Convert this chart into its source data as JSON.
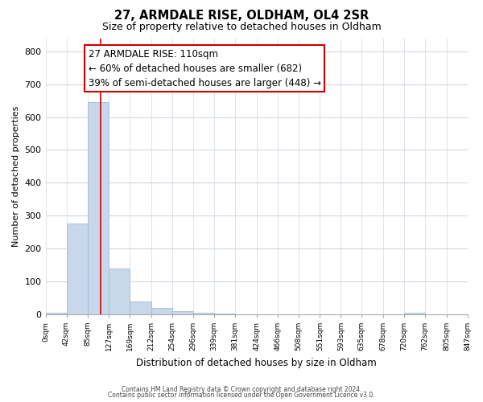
{
  "title": "27, ARMDALE RISE, OLDHAM, OL4 2SR",
  "subtitle": "Size of property relative to detached houses in Oldham",
  "xlabel": "Distribution of detached houses by size in Oldham",
  "ylabel": "Number of detached properties",
  "bar_color": "#c8d8ea",
  "bar_edge_color": "#a0bcd0",
  "bins": [
    0,
    42,
    85,
    127,
    169,
    212,
    254,
    296,
    339,
    381,
    424,
    466,
    508,
    551,
    593,
    635,
    678,
    720,
    762,
    805,
    847
  ],
  "bin_labels": [
    "0sqm",
    "42sqm",
    "85sqm",
    "127sqm",
    "169sqm",
    "212sqm",
    "254sqm",
    "296sqm",
    "339sqm",
    "381sqm",
    "424sqm",
    "466sqm",
    "508sqm",
    "551sqm",
    "593sqm",
    "635sqm",
    "678sqm",
    "720sqm",
    "762sqm",
    "805sqm",
    "847sqm"
  ],
  "bar_heights": [
    5,
    275,
    645,
    140,
    38,
    18,
    10,
    5,
    2,
    0,
    0,
    0,
    0,
    0,
    0,
    0,
    0,
    5,
    0,
    0
  ],
  "ylim": [
    0,
    840
  ],
  "yticks": [
    0,
    100,
    200,
    300,
    400,
    500,
    600,
    700,
    800
  ],
  "property_line_x": 110,
  "annotation_line1": "27 ARMDALE RISE: 110sqm",
  "annotation_line2": "← 60% of detached houses are smaller (682)",
  "annotation_line3": "39% of semi-detached houses are larger (448) →",
  "annotation_box_color": "#ffffff",
  "annotation_box_edge": "#cc0000",
  "property_line_color": "#cc0000",
  "footnote1": "Contains HM Land Registry data © Crown copyright and database right 2024.",
  "footnote2": "Contains public sector information licensed under the Open Government Licence v3.0.",
  "background_color": "#ffffff",
  "grid_color": "#d0d8e0"
}
